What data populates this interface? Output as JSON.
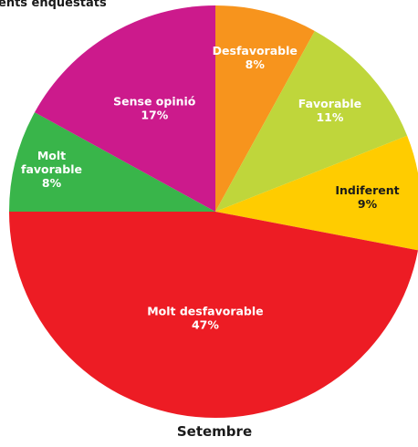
{
  "chart_data": {
    "type": "pie",
    "title": "ents enquestats",
    "xlabel": "Setembre",
    "start_angle_deg": 0,
    "direction": "clockwise",
    "slices": [
      {
        "label": "Desfavorable",
        "value_label": "8%",
        "value": 8,
        "color": "#f7941d",
        "label_color": "#ffffff"
      },
      {
        "label": "Favorable",
        "value_label": "11%",
        "value": 11,
        "color": "#bfd63b",
        "label_color": "#ffffff"
      },
      {
        "label": "Indiferent",
        "value_label": "9%",
        "value": 9,
        "color": "#ffcc00",
        "label_color": "#1a1a1a"
      },
      {
        "label": "Molt desfavorable",
        "value_label": "47%",
        "value": 47,
        "color": "#ed1c24",
        "label_color": "#ffffff"
      },
      {
        "label": "Molt\nfavorable",
        "value_label": "8%",
        "value": 8,
        "color": "#39b54a",
        "label_color": "#ffffff"
      },
      {
        "label": "Sense opinió",
        "value_label": "17%",
        "value": 17,
        "color": "#cc1a8c",
        "label_color": "#ffffff"
      }
    ]
  }
}
